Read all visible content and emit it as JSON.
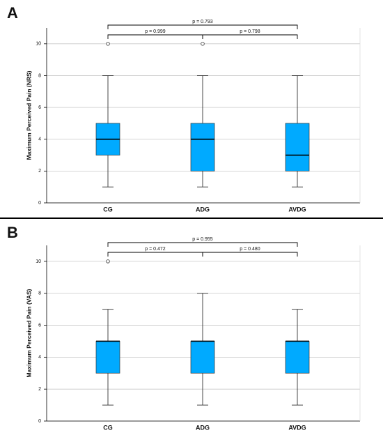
{
  "chart_data": [
    {
      "type": "box",
      "panel_label": "A",
      "ylabel": "Maximum Perceived Pain (NRS)",
      "categories": [
        "CG",
        "ADG",
        "AVDG"
      ],
      "color": "#00aaff",
      "boxes": [
        {
          "whisker_low": 1,
          "q1": 3,
          "median": 4,
          "q3": 5,
          "whisker_high": 8,
          "outliers": [
            10
          ]
        },
        {
          "whisker_low": 1,
          "q1": 2,
          "median": 4,
          "q3": 5,
          "whisker_high": 8,
          "outliers": [
            10
          ]
        },
        {
          "whisker_low": 1,
          "q1": 2,
          "median": 3,
          "q3": 5,
          "whisker_high": 8,
          "outliers": []
        }
      ],
      "ylim": [
        0,
        11
      ],
      "yticks": [
        0,
        2,
        4,
        6,
        8,
        10
      ],
      "grid": true,
      "annotations": [
        "p = 0.999",
        "p = 0.798",
        "p = 0.793"
      ]
    },
    {
      "type": "box",
      "panel_label": "B",
      "ylabel": "Maximum Perceived Pain (VAS)",
      "categories": [
        "CG",
        "ADG",
        "AVDG"
      ],
      "color": "#00aaff",
      "boxes": [
        {
          "whisker_low": 1,
          "q1": 3,
          "median": 5,
          "q3": 5,
          "whisker_high": 7,
          "outliers": [
            10
          ]
        },
        {
          "whisker_low": 1,
          "q1": 3,
          "median": 5,
          "q3": 5,
          "whisker_high": 8,
          "outliers": []
        },
        {
          "whisker_low": 1,
          "q1": 3,
          "median": 5,
          "q3": 5,
          "whisker_high": 7,
          "outliers": []
        }
      ],
      "ylim": [
        0,
        11
      ],
      "yticks": [
        0,
        2,
        4,
        6,
        8,
        10
      ],
      "grid": true,
      "annotations": [
        "p = 0.472",
        "p = 0.480",
        "p = 0.955"
      ]
    }
  ]
}
